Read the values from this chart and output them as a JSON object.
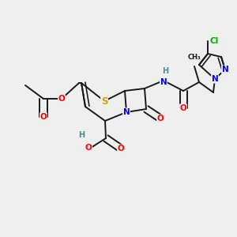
{
  "bg_color": "#EFEFEF",
  "bond_color": "#1a1a1a",
  "bond_width": 1.4,
  "atom_colors": {
    "O": "#FF0000",
    "N": "#0000FF",
    "S": "#C8A800",
    "Cl": "#00AA00",
    "H": "#4A9090",
    "C": "#1a1a1a"
  },
  "font_size_atom": 7.5,
  "font_size_small": 6.0
}
